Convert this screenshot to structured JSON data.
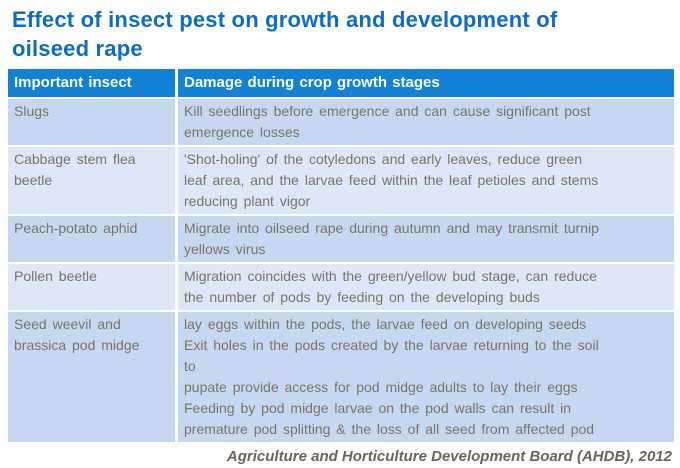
{
  "title": "Effect of insect pest on growth and development of\noilseed rape",
  "table": {
    "headers": [
      "Important insect",
      "Damage during crop growth stages"
    ],
    "rows": [
      {
        "insect": "Slugs",
        "damage": "Kill seedlings before emergence and can cause significant post\nemergence losses"
      },
      {
        "insect": "Cabbage stem flea\nbeetle",
        "damage": "'Shot-holing' of the cotyledons and early leaves, reduce green\nleaf area, and the larvae feed within the leaf petioles and stems\nreducing plant vigor"
      },
      {
        "insect": "Peach-potato aphid",
        "damage": "Migrate into oilseed rape during autumn and may transmit turnip\nyellows virus"
      },
      {
        "insect": "Pollen beetle",
        "damage": "Migration coincides with the green/yellow bud stage, can reduce\nthe number of pods by feeding on the developing buds"
      },
      {
        "insect": "Seed weevil and\nbrassica pod midge",
        "damage": "lay eggs within the pods, the larvae feed on developing seeds\nExit holes in the pods created by the larvae returning to the soil\nto\npupate provide access for pod midge adults to lay their eggs\nFeeding by pod midge larvae on the pod walls can result in\npremature pod splitting & the loss of all seed from affected pod"
      }
    ]
  },
  "footer": {
    "credit": "Agriculture and Horticulture Development Board (AHDB), 2012"
  },
  "colors": {
    "title_blue": "#0d6cc5",
    "header_bg": "#1182d6",
    "row_odd_bg": "#c6d8f1",
    "row_even_bg": "#dde7f7",
    "body_text": "#7d7365",
    "credit_text": "#6e6455"
  }
}
